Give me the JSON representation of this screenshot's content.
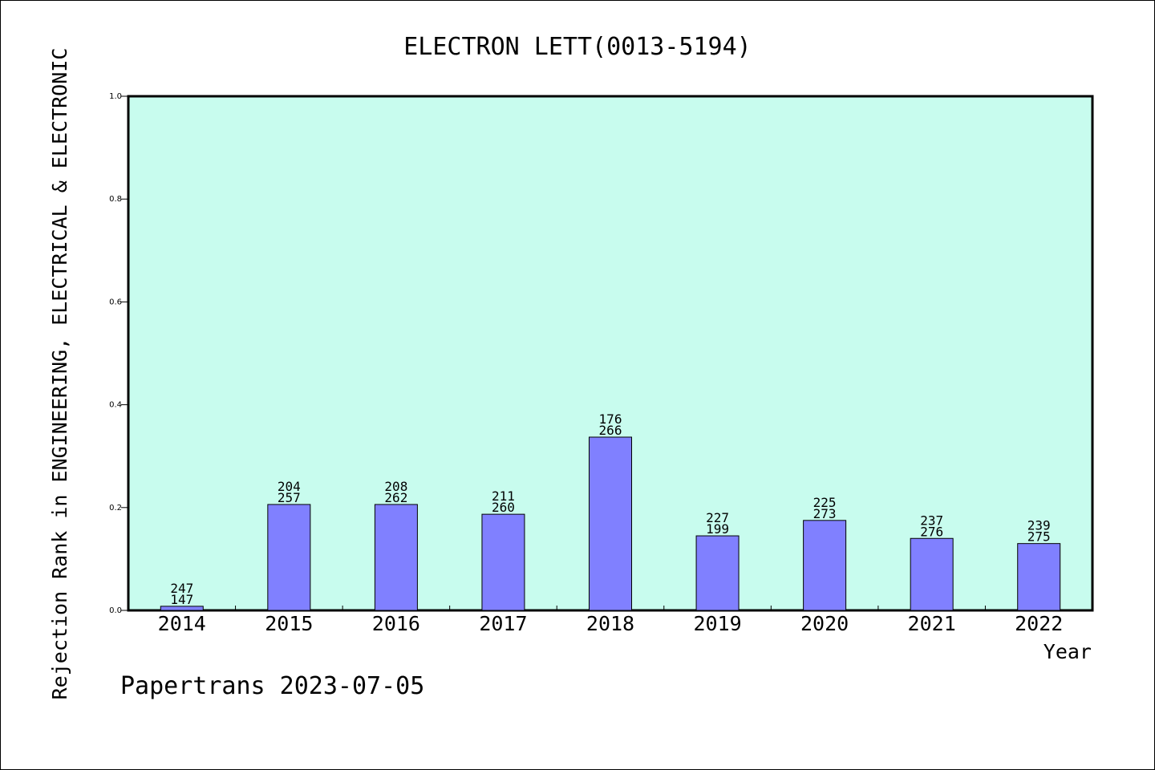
{
  "chart_data": {
    "type": "bar",
    "title": "ELECTRON LETT(0013-5194)",
    "xlabel": "Year",
    "ylabel": "Rejection Rank in ENGINEERING, ELECTRICAL & ELECTRONIC",
    "footer": "Papertrans 2023-07-05",
    "ylim": [
      0,
      1.0
    ],
    "yticks": [
      0.0,
      0.2,
      0.4,
      0.6,
      0.8,
      1.0
    ],
    "ytick_labels": [
      "0.0",
      "0.2",
      "0.4",
      "0.6",
      "0.8",
      "1.0"
    ],
    "grid": false,
    "colors": {
      "plot_background": "#c8fcee",
      "bar_fill": "#8080ff",
      "bar_stroke": "#000000"
    },
    "categories": [
      "2014",
      "2015",
      "2016",
      "2017",
      "2018",
      "2019",
      "2020",
      "2021",
      "2022"
    ],
    "values": [
      0.008,
      0.206,
      0.206,
      0.187,
      0.337,
      0.145,
      0.175,
      0.14,
      0.13
    ],
    "label_top": [
      "247",
      "204",
      "208",
      "211",
      "176",
      "227",
      "225",
      "237",
      "239"
    ],
    "label_bottom": [
      "147",
      "257",
      "262",
      "260",
      "266",
      "199",
      "273",
      "276",
      "275"
    ]
  }
}
